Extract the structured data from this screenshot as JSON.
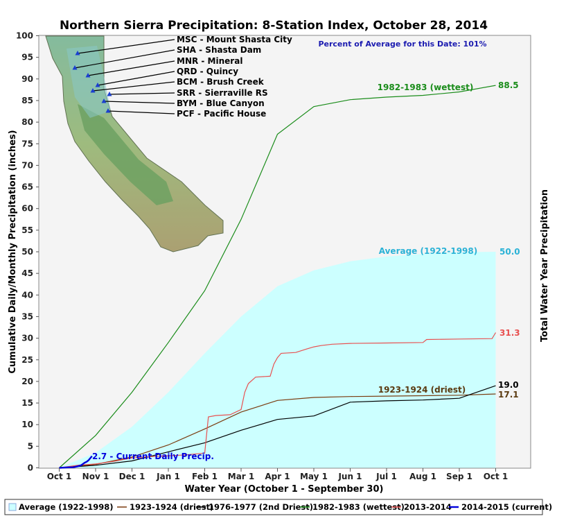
{
  "chart_data": {
    "type": "line",
    "title": "Northern Sierra Precipitation: 8-Station Index, October 28, 2014",
    "subtitle": "Percent of Average for this Date: 101%",
    "xlabel": "Water Year (October 1 - September 30)",
    "ylabel": "Cumulative Daily/Monthly Precipitation (inches)",
    "ylabel_right": "Total Water Year Precipitation",
    "ylim": [
      0,
      100
    ],
    "y_ticks": [
      0,
      5,
      10,
      15,
      20,
      25,
      30,
      35,
      40,
      45,
      50,
      55,
      60,
      65,
      70,
      75,
      80,
      85,
      90,
      95,
      100
    ],
    "x_ticks": [
      "Oct 1",
      "Nov 1",
      "Dec 1",
      "Jan 1",
      "Feb 1",
      "Mar 1",
      "Apr 1",
      "May 1",
      "Jun 1",
      "Jul 1",
      "Aug 1",
      "Sep 1",
      "Oct 1"
    ],
    "grid": false,
    "legend_position": "bottom",
    "series": [
      {
        "name": "Average (1922-1998)",
        "kind": "area",
        "color": "#ccffff",
        "x": [
          0,
          1,
          2,
          3,
          4,
          5,
          6,
          7,
          8,
          9,
          10,
          11,
          12
        ],
        "y": [
          0,
          3.5,
          9.5,
          17.5,
          26.5,
          35,
          42,
          45.7,
          47.8,
          48.9,
          49.5,
          49.9,
          50.0
        ],
        "end_label": "Average (1922-1998)",
        "end_value": "50.0"
      },
      {
        "name": "1923-1924 (driest)",
        "color": "#7a3b0f",
        "x": [
          0,
          1,
          2,
          3,
          4,
          5,
          6,
          7,
          8,
          9,
          10,
          11,
          12
        ],
        "y": [
          0,
          0.8,
          2.5,
          5.3,
          9,
          12.9,
          15.6,
          16.3,
          16.5,
          16.6,
          16.7,
          16.8,
          17.1
        ],
        "end_label": "1923-1924 (driest)",
        "end_value": "17.1"
      },
      {
        "name": "1976-1977 (2nd Driest)",
        "color": "#000000",
        "x": [
          0,
          1,
          2,
          3,
          4,
          5,
          6,
          7,
          8,
          9,
          10,
          11,
          12
        ],
        "y": [
          0,
          0.6,
          1.6,
          3.7,
          5.8,
          8.7,
          11.2,
          12.0,
          15.2,
          15.5,
          15.7,
          16.1,
          19.0
        ],
        "end_value": "19.0"
      },
      {
        "name": "1982-1983 (wettest)",
        "color": "#1a8c1a",
        "x": [
          0,
          1,
          2,
          3,
          4,
          5,
          6,
          7,
          8,
          9,
          10,
          11,
          12
        ],
        "y": [
          0,
          7.5,
          17.5,
          29,
          41,
          57.5,
          77.2,
          83.6,
          85.2,
          85.8,
          86.2,
          87.0,
          88.5
        ],
        "end_label": "1982-1983 (wettest)",
        "end_value": "88.5"
      },
      {
        "name": "2013-2014",
        "color": "#e85050",
        "x": [
          0,
          0.5,
          1,
          1.5,
          2,
          2.5,
          3,
          3.5,
          3.6,
          4.0,
          4.1,
          4.3,
          4.7,
          5.0,
          5.1,
          5.2,
          5.4,
          5.8,
          5.9,
          6.0,
          6.1,
          6.5,
          6.8,
          7.0,
          7.2,
          7.5,
          8.0,
          9.0,
          10.0,
          10.1,
          11.0,
          11.9,
          12.0
        ],
        "y": [
          0,
          0.6,
          0.9,
          1.5,
          2.3,
          2.6,
          2.8,
          3.0,
          3.1,
          3.4,
          11.8,
          12.1,
          12.3,
          13.5,
          17.5,
          19.5,
          21.0,
          21.2,
          24.0,
          25.5,
          26.5,
          26.7,
          27.5,
          28.0,
          28.3,
          28.6,
          28.8,
          28.9,
          29.0,
          29.7,
          29.8,
          29.9,
          31.3
        ],
        "end_value": "31.3"
      },
      {
        "name": "2014-2015 (current)",
        "color": "#0000dd",
        "x": [
          0,
          0.2,
          0.4,
          0.5,
          0.6,
          0.7,
          0.75,
          0.8,
          0.87,
          0.9
        ],
        "y": [
          0,
          0.1,
          0.15,
          0.35,
          0.6,
          1.2,
          1.4,
          1.7,
          2.4,
          2.7
        ],
        "point_label": "2.7 -  Current Daily Precip."
      }
    ],
    "stations": [
      "MSC - Mount Shasta City",
      "SHA - Shasta Dam",
      "MNR - Mineral",
      "QRD - Quincy",
      "BCM - Brush Creek",
      "SRR - Sierraville RS",
      "BYM - Blue Canyon",
      "PCF - Pacific House"
    ]
  }
}
